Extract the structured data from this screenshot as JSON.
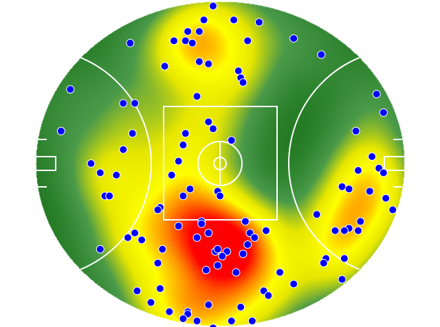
{
  "chart_data": {
    "type": "heatmap",
    "subtype": "scatter-over-density",
    "field": "AFL oval",
    "field_units": "metres",
    "field_length": 160,
    "field_width": 140,
    "xlim": [
      -80,
      80
    ],
    "ylim": [
      -70,
      70
    ],
    "grid": false,
    "legend": "none",
    "colors": {
      "low": "#1a721a",
      "mid_low": "#4a9a4a",
      "mid": "#e6e600",
      "high_mid": "#ffff00",
      "high": "#ff0000",
      "points": "#0000ff",
      "point_edge": "#ffffff",
      "lines": "#ffffff"
    },
    "points": [
      [
        -3,
        68
      ],
      [
        -7,
        62
      ],
      [
        6,
        62
      ],
      [
        17,
        61
      ],
      [
        -14,
        57
      ],
      [
        -9,
        57
      ],
      [
        -20,
        53
      ],
      [
        -15,
        53
      ],
      [
        -12,
        52
      ],
      [
        12,
        53
      ],
      [
        32,
        54
      ],
      [
        44,
        47
      ],
      [
        -39,
        52
      ],
      [
        -24,
        42
      ],
      [
        -9,
        44
      ],
      [
        -5,
        43
      ],
      [
        8,
        40
      ],
      [
        9,
        37
      ],
      [
        10,
        35
      ],
      [
        -65,
        32
      ],
      [
        -42,
        26
      ],
      [
        -37,
        26
      ],
      [
        -10,
        29
      ],
      [
        68,
        30
      ],
      [
        71,
        22
      ],
      [
        -69,
        14
      ],
      [
        -38,
        13
      ],
      [
        -5,
        18
      ],
      [
        -3,
        15
      ],
      [
        -15,
        13
      ],
      [
        5,
        10
      ],
      [
        59,
        14
      ],
      [
        -16,
        8
      ],
      [
        -42,
        6
      ],
      [
        -18,
        1
      ],
      [
        -56,
        0
      ],
      [
        -52,
        -4
      ],
      [
        -45,
        -5
      ],
      [
        -21,
        -5
      ],
      [
        66,
        3
      ],
      [
        60,
        -3
      ],
      [
        69,
        -2
      ],
      [
        71,
        -4
      ],
      [
        53,
        -10
      ],
      [
        56,
        -11
      ],
      [
        65,
        -12
      ],
      [
        -13,
        -11
      ],
      [
        -1,
        -12
      ],
      [
        0,
        -14
      ],
      [
        -16,
        -14
      ],
      [
        -50,
        -14
      ],
      [
        -48,
        -14
      ],
      [
        72,
        -15
      ],
      [
        75,
        -20
      ],
      [
        -26,
        -19
      ],
      [
        -27,
        -20
      ],
      [
        42,
        -22
      ],
      [
        -8,
        -25
      ],
      [
        -8,
        -26
      ],
      [
        11,
        -25
      ],
      [
        -18,
        -27
      ],
      [
        20,
        -29
      ],
      [
        -5,
        -30
      ],
      [
        13,
        -30
      ],
      [
        15,
        -32
      ],
      [
        -10,
        -32
      ],
      [
        -37,
        -30
      ],
      [
        -40,
        -32
      ],
      [
        -34,
        -33
      ],
      [
        61,
        -25
      ],
      [
        56,
        -28
      ],
      [
        50,
        -29
      ],
      [
        54,
        -29
      ],
      [
        60,
        -29
      ],
      [
        12,
        -35
      ],
      [
        -52,
        -37
      ],
      [
        -25,
        -37
      ],
      [
        -2,
        -38
      ],
      [
        -1,
        -37
      ],
      [
        3,
        -38
      ],
      [
        1,
        -40
      ],
      [
        10,
        -39
      ],
      [
        -27,
        -43
      ],
      [
        -1,
        -44
      ],
      [
        -6,
        -46
      ],
      [
        7,
        -47
      ],
      [
        26,
        -47
      ],
      [
        46,
        -41
      ],
      [
        45,
        -43
      ],
      [
        54,
        -41
      ],
      [
        32,
        -52
      ],
      [
        53,
        -50
      ],
      [
        -36,
        -55
      ],
      [
        -26,
        -54
      ],
      [
        19,
        -55
      ],
      [
        21,
        -57
      ],
      [
        -30,
        -60
      ],
      [
        -5,
        -61
      ],
      [
        9,
        -62
      ],
      [
        -22,
        -64
      ],
      [
        -14,
        -64
      ],
      [
        -14,
        -65
      ],
      [
        -16,
        -67
      ],
      [
        -10,
        -68
      ],
      [
        -3,
        -71
      ],
      [
        5,
        -68
      ],
      [
        14,
        -68
      ]
    ]
  }
}
